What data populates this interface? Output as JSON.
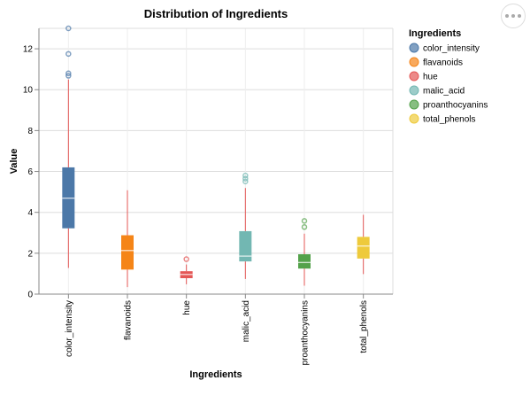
{
  "chart_data": {
    "type": "boxplot",
    "title": "Distribution of Ingredients",
    "xlabel": "Ingredients",
    "ylabel": "Value",
    "ylim": [
      0,
      13
    ],
    "yticks": [
      0,
      2,
      4,
      6,
      8,
      10,
      12
    ],
    "grid": true,
    "legend": {
      "title": "Ingredients",
      "placement": "right"
    },
    "whisker_color": "#e45756",
    "categories": [
      "color_intensity",
      "flavanoids",
      "hue",
      "malic_acid",
      "proanthocyanins",
      "total_phenols"
    ],
    "series": [
      {
        "name": "color_intensity",
        "color": "#4c78a8",
        "min": 1.28,
        "q1": 3.22,
        "median": 4.69,
        "q3": 6.2,
        "max": 10.5,
        "outliers": [
          10.68,
          10.8,
          11.75,
          13.0
        ]
      },
      {
        "name": "flavanoids",
        "color": "#f58518",
        "min": 0.34,
        "q1": 1.2,
        "median": 2.13,
        "q3": 2.88,
        "max": 5.08,
        "outliers": []
      },
      {
        "name": "hue",
        "color": "#e45756",
        "min": 0.48,
        "q1": 0.78,
        "median": 0.96,
        "q3": 1.12,
        "max": 1.45,
        "outliers": [
          1.71
        ]
      },
      {
        "name": "malic_acid",
        "color": "#72b7b2",
        "min": 0.74,
        "q1": 1.6,
        "median": 1.86,
        "q3": 3.08,
        "max": 5.19,
        "outliers": [
          5.51,
          5.65,
          5.8
        ]
      },
      {
        "name": "proanthocyanins",
        "color": "#54a24b",
        "min": 0.41,
        "q1": 1.25,
        "median": 1.55,
        "q3": 1.95,
        "max": 2.96,
        "outliers": [
          3.28,
          3.58
        ]
      },
      {
        "name": "total_phenols",
        "color": "#eeca3b",
        "min": 0.98,
        "q1": 1.74,
        "median": 2.35,
        "q3": 2.8,
        "max": 3.88,
        "outliers": []
      }
    ]
  }
}
